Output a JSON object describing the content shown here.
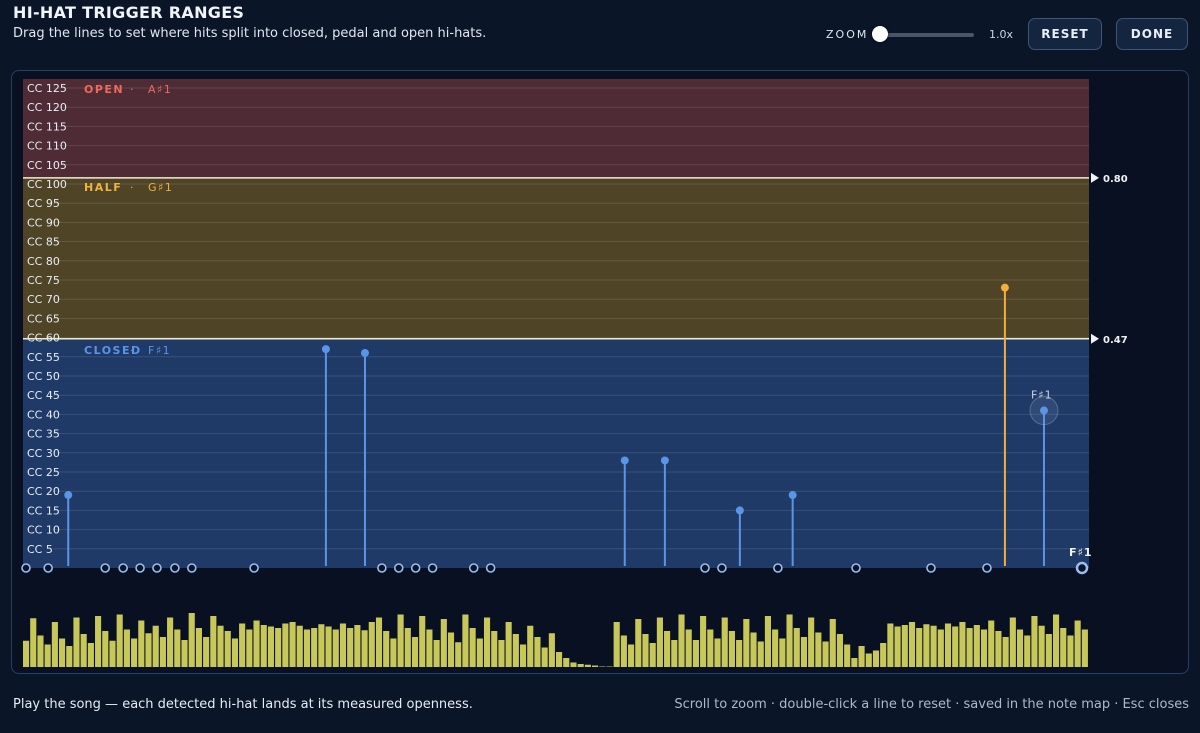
{
  "header": {
    "title": "HI-HAT TRIGGER RANGES",
    "subtitle": "Drag the lines to set where hits split into closed, pedal and open hi-hats."
  },
  "toolbar": {
    "zoom_label": "ZOOM",
    "zoom_value": "1.0x",
    "zoom_fraction": 0.0,
    "reset_label": "RESET",
    "done_label": "DONE"
  },
  "colors": {
    "open_zone": "#4e2b35",
    "half_zone": "#4f4426",
    "closed_zone": "#1f3a66",
    "open_text": "#ee6a5a",
    "half_text": "#f0b340",
    "closed_text": "#5b95e6",
    "hit_closed": "#5a95e6",
    "hit_half": "#f2ae3f",
    "waveform": "#c8c85a",
    "boundary_line": "#f0eccf"
  },
  "chart": {
    "cc_labels": [
      "CC 125",
      "CC 120",
      "CC 115",
      "CC 110",
      "CC 105",
      "CC 100",
      "CC 95",
      "CC 90",
      "CC 85",
      "CC 80",
      "CC 75",
      "CC 70",
      "CC 65",
      "CC 60",
      "CC 55",
      "CC 50",
      "CC 45",
      "CC 40",
      "CC 35",
      "CC 30",
      "CC 25",
      "CC 20",
      "CC 15",
      "CC 10",
      "CC 5"
    ],
    "zones": {
      "open": {
        "name": "OPEN",
        "note": "A♯1"
      },
      "half": {
        "name": "HALF",
        "note": "G♯1"
      },
      "closed": {
        "name": "CLOSED",
        "note": "F♯1"
      }
    },
    "separator": "·",
    "thresholds": [
      {
        "value": 0.8,
        "label": "0.80"
      },
      {
        "value": 0.47,
        "label": "0.47"
      }
    ],
    "hover_note": "F♯1",
    "playhead_note": "F♯1"
  },
  "chart_data": {
    "type": "scatter",
    "title": "",
    "xlabel": "",
    "ylabel": "",
    "ylim": [
      0,
      127
    ],
    "xlim": [
      0,
      1
    ],
    "note": "hit openness in CC units; zero-value hits are open circles on the baseline",
    "hits": [
      {
        "x": 0.0,
        "cc": 0
      },
      {
        "x": 0.021,
        "cc": 0
      },
      {
        "x": 0.04,
        "cc": 19
      },
      {
        "x": 0.075,
        "cc": 0
      },
      {
        "x": 0.092,
        "cc": 0
      },
      {
        "x": 0.108,
        "cc": 0
      },
      {
        "x": 0.124,
        "cc": 0
      },
      {
        "x": 0.141,
        "cc": 0
      },
      {
        "x": 0.157,
        "cc": 0
      },
      {
        "x": 0.216,
        "cc": 0
      },
      {
        "x": 0.284,
        "cc": 57
      },
      {
        "x": 0.321,
        "cc": 56
      },
      {
        "x": 0.337,
        "cc": 0
      },
      {
        "x": 0.353,
        "cc": 0
      },
      {
        "x": 0.369,
        "cc": 0
      },
      {
        "x": 0.385,
        "cc": 0
      },
      {
        "x": 0.424,
        "cc": 0
      },
      {
        "x": 0.44,
        "cc": 0
      },
      {
        "x": 0.567,
        "cc": 28
      },
      {
        "x": 0.605,
        "cc": 28
      },
      {
        "x": 0.643,
        "cc": 0
      },
      {
        "x": 0.659,
        "cc": 0
      },
      {
        "x": 0.676,
        "cc": 15
      },
      {
        "x": 0.712,
        "cc": 0
      },
      {
        "x": 0.726,
        "cc": 19
      },
      {
        "x": 0.786,
        "cc": 0
      },
      {
        "x": 0.857,
        "cc": 0
      },
      {
        "x": 0.91,
        "cc": 0
      },
      {
        "x": 0.927,
        "cc": 73
      },
      {
        "x": 0.964,
        "cc": 41
      },
      {
        "x": 1.0,
        "cc": 0
      }
    ],
    "waveform": [
      0.35,
      0.65,
      0.42,
      0.3,
      0.6,
      0.38,
      0.28,
      0.66,
      0.44,
      0.32,
      0.68,
      0.48,
      0.35,
      0.7,
      0.5,
      0.38,
      0.62,
      0.45,
      0.55,
      0.4,
      0.66,
      0.5,
      0.36,
      0.72,
      0.52,
      0.4,
      0.68,
      0.55,
      0.48,
      0.38,
      0.58,
      0.5,
      0.62,
      0.56,
      0.54,
      0.52,
      0.58,
      0.6,
      0.55,
      0.5,
      0.52,
      0.57,
      0.54,
      0.5,
      0.58,
      0.52,
      0.56,
      0.49,
      0.6,
      0.66,
      0.48,
      0.38,
      0.7,
      0.52,
      0.4,
      0.68,
      0.5,
      0.36,
      0.64,
      0.46,
      0.33,
      0.7,
      0.52,
      0.38,
      0.66,
      0.48,
      0.36,
      0.6,
      0.44,
      0.3,
      0.55,
      0.4,
      0.26,
      0.45,
      0.2,
      0.12,
      0.06,
      0.04,
      0.03,
      0.02,
      0.0,
      0.0,
      0.6,
      0.42,
      0.3,
      0.64,
      0.44,
      0.32,
      0.66,
      0.48,
      0.36,
      0.7,
      0.5,
      0.36,
      0.68,
      0.5,
      0.38,
      0.66,
      0.48,
      0.36,
      0.64,
      0.46,
      0.34,
      0.68,
      0.5,
      0.38,
      0.7,
      0.52,
      0.4,
      0.66,
      0.46,
      0.34,
      0.64,
      0.44,
      0.3,
      0.12,
      0.28,
      0.18,
      0.22,
      0.32,
      0.58,
      0.54,
      0.56,
      0.6,
      0.52,
      0.57,
      0.55,
      0.5,
      0.58,
      0.54,
      0.6,
      0.52,
      0.56,
      0.5,
      0.62,
      0.48,
      0.4,
      0.66,
      0.5,
      0.42,
      0.68,
      0.55,
      0.44,
      0.7,
      0.52,
      0.42,
      0.62,
      0.5
    ]
  },
  "footer": {
    "left": "Play the song — each detected hi-hat lands at its measured openness.",
    "right": "Scroll to zoom · double-click a line to reset · saved in the note map · Esc closes"
  }
}
